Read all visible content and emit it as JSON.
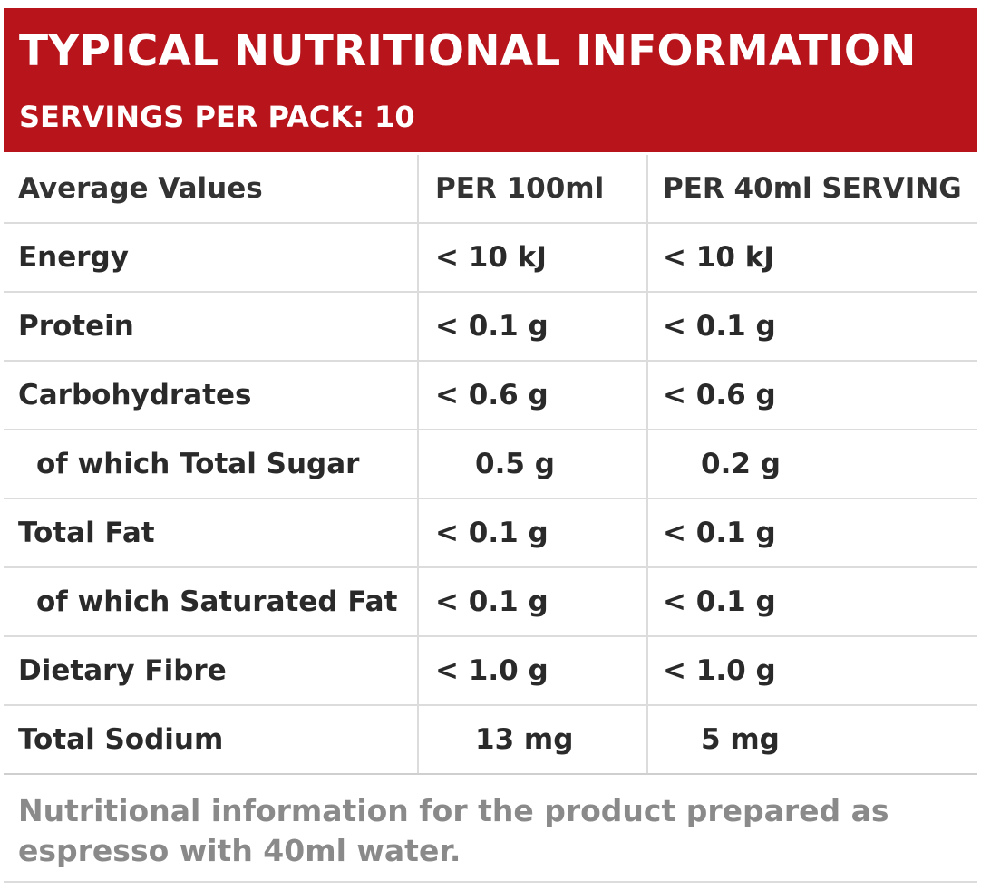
{
  "header": {
    "title": "TYPICAL NUTRITIONAL INFORMATION",
    "subtitle": "SERVINGS PER PACK: 10",
    "background_color": "#b8141c"
  },
  "table": {
    "columns": [
      "Average Values",
      "PER 100ml",
      "PER 40ml SERVING"
    ],
    "rows": [
      {
        "label": "Energy",
        "per_100ml": "< 10 kJ",
        "per_serving": "< 10 kJ"
      },
      {
        "label": "Protein",
        "per_100ml": "< 0.1 g",
        "per_serving": "< 0.1 g"
      },
      {
        "label": "Carbohydrates",
        "per_100ml": "< 0.6 g",
        "per_serving": "< 0.6 g"
      },
      {
        "label": "of which Total Sugar",
        "per_100ml": "0.5 g",
        "per_serving": "0.2 g"
      },
      {
        "label": "Total Fat",
        "per_100ml": "< 0.1 g",
        "per_serving": "< 0.1 g"
      },
      {
        "label": "of which Saturated Fat",
        "per_100ml": "< 0.1 g",
        "per_serving": "< 0.1 g"
      },
      {
        "label": "Dietary Fibre",
        "per_100ml": "< 1.0 g",
        "per_serving": "< 1.0 g"
      },
      {
        "label": "Total Sodium",
        "per_100ml": "13 mg",
        "per_serving": "5 mg"
      }
    ]
  },
  "footnote": "Nutritional information for the product prepared as espresso with 40ml water."
}
